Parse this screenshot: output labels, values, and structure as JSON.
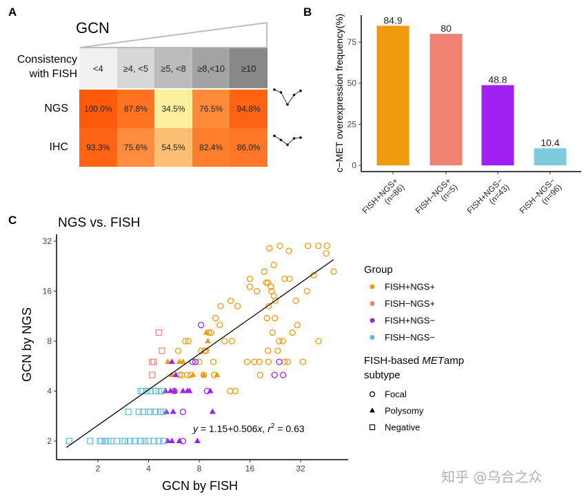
{
  "panel_a": {
    "label": "A",
    "gcn_title": "GCN",
    "header_label": "Consistency with FISH",
    "columns": [
      "<4",
      "≥4, <5",
      "≥5, <8",
      "≥8,<10",
      "≥10"
    ],
    "column_colors": [
      "#f0f0f0",
      "#d7d7d7",
      "#bcbcbc",
      "#a3a3a3",
      "#878787"
    ],
    "rows": [
      {
        "label": "NGS",
        "values": [
          "100.0%",
          "87.8%",
          "34.5%",
          "76.5%",
          "94.8%"
        ],
        "numbers": [
          100.0,
          87.8,
          34.5,
          76.5,
          94.8
        ],
        "colors": [
          "#ff5a0a",
          "#fe7422",
          "#fdef9e",
          "#fd8b3a",
          "#fe6314"
        ]
      },
      {
        "label": "IHC",
        "values": [
          "93.3%",
          "75.6%",
          "54.5%",
          "82.4%",
          "86.0%"
        ],
        "numbers": [
          93.3,
          75.6,
          54.5,
          82.4,
          86.0
        ],
        "colors": [
          "#fe6414",
          "#fd8d3c",
          "#fdbf71",
          "#fe7e2c",
          "#fe7726"
        ]
      }
    ]
  },
  "chart_data": [
    {
      "type": "bar",
      "panel": "B",
      "ylabel": "c−MET overexpression frequency(%)",
      "categories": [
        [
          "FISH+NGS+",
          "(n=86)"
        ],
        [
          "FISH−NGS+",
          "(n=5)"
        ],
        [
          "FISH+NGS−",
          "(n=43)"
        ],
        [
          "FISH−NGS−",
          "(n=96)"
        ]
      ],
      "values": [
        84.9,
        80,
        48.8,
        10.4
      ],
      "value_labels": [
        "84.9",
        "80",
        "48.8",
        "10.4"
      ],
      "colors": [
        "#ef9b0d",
        "#ef8272",
        "#a020f0",
        "#7ecbe0"
      ],
      "yticks": [
        "0",
        "25",
        "50",
        "75"
      ],
      "ylim": [
        0,
        89
      ],
      "grid": false
    },
    {
      "type": "scatter",
      "panel": "C",
      "title": "NGS vs. FISH",
      "xlabel": "GCN by FISH",
      "ylabel": "GCN by NGS",
      "xscale": "log2",
      "yscale": "log2",
      "xticks": [
        "2",
        "4",
        "8",
        "16",
        "32"
      ],
      "yticks": [
        "2",
        "4",
        "8",
        "16",
        "32"
      ],
      "xlim": [
        1.2,
        60
      ],
      "ylim": [
        1.55,
        35
      ],
      "grid": false,
      "annotation": {
        "y": "y",
        "eq": " = 1.15+0.506",
        "x": "x",
        "sep": ", ",
        "r": "r",
        "sup": "2",
        "rval": " = 0.63"
      },
      "fit_line": {
        "x": [
          1.3,
          50.3
        ],
        "y": [
          1.83,
          24.8
        ]
      },
      "group_colors": {
        "FISH+NGS+": "#ef9b0d",
        "FISH−NGS+": "#ef8272",
        "FISH+NGS−": "#a020f0",
        "FISH−NGS−": "#5bbcd6"
      },
      "legend": {
        "position": "right",
        "group_title": "Group",
        "groups": [
          "FISH+NGS+",
          "FISH−NGS+",
          "FISH+NGS−",
          "FISH−NGS−"
        ],
        "subtype_title_pre": "FISH-based ",
        "subtype_title_em": "MET",
        "subtype_title_post": "amp",
        "subtype_title_line2": "subtype",
        "subtypes": [
          {
            "label": "Focal",
            "shape": "circle"
          },
          {
            "label": "Polysomy",
            "shape": "triangle"
          },
          {
            "label": "Negative",
            "shape": "square"
          }
        ]
      },
      "series": [
        {
          "group": "FISH+NGS+",
          "shape": "circle",
          "points": [
            [
              20.9,
              29
            ],
            [
              24.1,
              30
            ],
            [
              27.3,
              28
            ],
            [
              35.4,
              30
            ],
            [
              40.8,
              30
            ],
            [
              45.9,
              30
            ],
            [
              45.5,
              27
            ],
            [
              50.3,
              21
            ],
            [
              38.3,
              20
            ],
            [
              22.2,
              23
            ],
            [
              19.5,
              21
            ],
            [
              16.0,
              19
            ],
            [
              25.7,
              19
            ],
            [
              27.5,
              19
            ],
            [
              16.0,
              17
            ],
            [
              17.6,
              16
            ],
            [
              20.0,
              18
            ],
            [
              20.5,
              18
            ],
            [
              21.3,
              17
            ],
            [
              21.5,
              16
            ],
            [
              22.2,
              15
            ],
            [
              22.7,
              14
            ],
            [
              20.7,
              13
            ],
            [
              35.0,
              16
            ],
            [
              30.0,
              14
            ],
            [
              12.3,
              14
            ],
            [
              10.7,
              13
            ],
            [
              13.5,
              13
            ],
            [
              10.0,
              11
            ],
            [
              10.6,
              10
            ],
            [
              20.2,
              11
            ],
            [
              22.5,
              11
            ],
            [
              30.6,
              10
            ],
            [
              21.8,
              9
            ],
            [
              28.6,
              9
            ],
            [
              9.4,
              9
            ],
            [
              9.1,
              9
            ],
            [
              6.6,
              8
            ],
            [
              6.9,
              8
            ],
            [
              11.3,
              8
            ],
            [
              12.5,
              8
            ],
            [
              23.9,
              8
            ],
            [
              25.1,
              8
            ],
            [
              40.9,
              8
            ],
            [
              6.0,
              7
            ],
            [
              8.2,
              7
            ],
            [
              8.6,
              7
            ],
            [
              8.8,
              7
            ],
            [
              20.5,
              7
            ],
            [
              23.4,
              7
            ],
            [
              8.0,
              6
            ],
            [
              9.7,
              6
            ],
            [
              15.4,
              6
            ],
            [
              17.0,
              6
            ],
            [
              18.2,
              6
            ],
            [
              20.6,
              6
            ],
            [
              25.7,
              6
            ],
            [
              26.8,
              6
            ],
            [
              33.0,
              6
            ],
            [
              6.1,
              5
            ],
            [
              6.3,
              5
            ],
            [
              6.8,
              5
            ],
            [
              7.1,
              5
            ],
            [
              8.5,
              5
            ],
            [
              9.8,
              5
            ],
            [
              18.4,
              5
            ],
            [
              12.2,
              4
            ],
            [
              13.1,
              4
            ]
          ]
        },
        {
          "group": "FISH+NGS+",
          "shape": "triangle",
          "points": [
            [
              8.8,
              9
            ],
            [
              9.0,
              8
            ],
            [
              5.2,
              6
            ],
            [
              6.1,
              6
            ],
            [
              6.4,
              6
            ],
            [
              5.5,
              5
            ],
            [
              7.35,
              5
            ],
            [
              10.2,
              5
            ],
            [
              8.5,
              5
            ]
          ]
        },
        {
          "group": "FISH+NGS−",
          "shape": "circle",
          "points": [
            [
              8.2,
              10
            ],
            [
              7.3,
              6
            ],
            [
              7.6,
              6
            ],
            [
              23.9,
              6
            ],
            [
              22.4,
              5
            ],
            [
              25.2,
              5
            ],
            [
              8.9,
              4
            ],
            [
              5.7,
              4
            ],
            [
              6.4,
              3
            ],
            [
              6.4,
              2
            ]
          ]
        },
        {
          "group": "FISH+NGS−",
          "shape": "triangle",
          "points": [
            [
              5.5,
              6
            ],
            [
              5.8,
              5
            ],
            [
              5.04,
              4
            ],
            [
              5.4,
              4
            ],
            [
              5.7,
              4
            ],
            [
              6.4,
              4
            ],
            [
              6.8,
              4
            ],
            [
              7.0,
              4
            ],
            [
              9.3,
              4
            ],
            [
              5.1,
              3
            ],
            [
              5.6,
              3
            ],
            [
              9.6,
              3
            ],
            [
              5.2,
              2
            ],
            [
              5.5,
              2
            ],
            [
              6.1,
              2
            ],
            [
              7.8,
              2
            ]
          ]
        },
        {
          "group": "FISH−NGS+",
          "shape": "square",
          "points": [
            [
              4.6,
              9
            ],
            [
              4.8,
              7
            ],
            [
              4.2,
              6
            ],
            [
              4.3,
              6
            ],
            [
              4.2,
              5
            ]
          ]
        },
        {
          "group": "FISH−NGS−",
          "shape": "square",
          "points": [
            [
              1.35,
              2
            ],
            [
              1.8,
              2
            ],
            [
              2.06,
              2
            ],
            [
              2.1,
              2
            ],
            [
              2.2,
              2
            ],
            [
              2.3,
              2
            ],
            [
              2.4,
              2
            ],
            [
              2.6,
              2
            ],
            [
              2.8,
              2
            ],
            [
              2.9,
              2
            ],
            [
              3.1,
              2
            ],
            [
              3.3,
              2
            ],
            [
              3.6,
              2
            ],
            [
              3.8,
              2
            ],
            [
              4.0,
              2
            ],
            [
              4.3,
              2
            ],
            [
              4.6,
              2
            ],
            [
              4.9,
              2
            ],
            [
              3.03,
              3
            ],
            [
              3.5,
              3
            ],
            [
              3.7,
              3
            ],
            [
              4.0,
              3
            ],
            [
              4.1,
              3
            ],
            [
              4.4,
              3
            ],
            [
              4.7,
              3
            ],
            [
              4.9,
              3
            ],
            [
              3.6,
              4
            ],
            [
              3.7,
              4
            ],
            [
              3.9,
              4
            ],
            [
              4.1,
              4
            ],
            [
              4.4,
              4
            ],
            [
              4.6,
              4
            ],
            [
              4.8,
              4
            ]
          ]
        }
      ]
    }
  ],
  "panel_b_label": "B",
  "panel_c_label": "C",
  "watermark": "知乎 @乌合之众"
}
